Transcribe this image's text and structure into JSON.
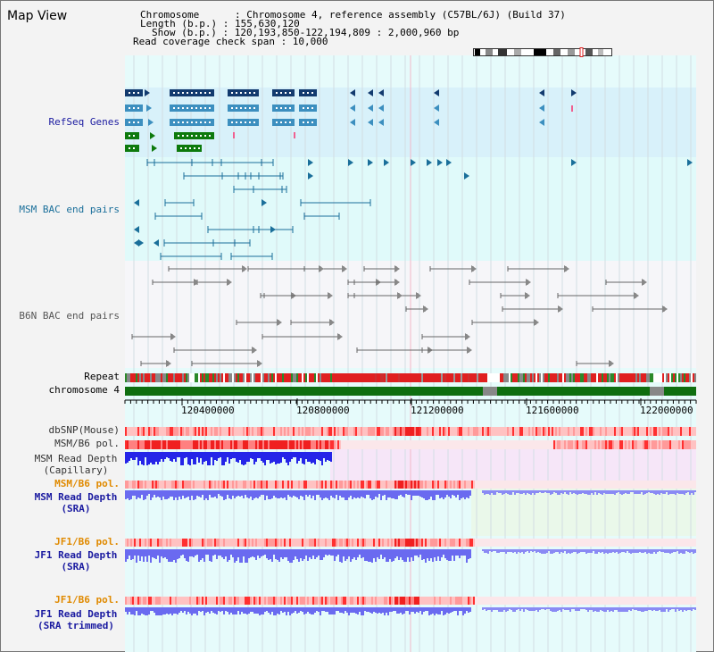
{
  "header": {
    "title": "Map View",
    "chromosome_line": "Chromosome      : Chromosome 4, reference assembly (C57BL/6J) (Build 37)",
    "length_line": "Length (b.p.) : 155,630,120",
    "show_line": "Show (b.p.) : 120,193,850-122,194,809 : 2,000,960 bp",
    "coverage_line": "Read coverage check span : 10,000"
  },
  "tracks": {
    "refseq": "RefSeq Genes",
    "msm_bac": "MSM BAC end pairs",
    "b6n_bac": "B6N BAC end pairs",
    "repeat": "Repeat",
    "chromosome": "chromosome 4",
    "dbsnp": "dbSNP(Mouse)",
    "msm_pol_1": "MSM/B6 pol.",
    "msm_depth_cap_1": "MSM Read Depth",
    "msm_depth_cap_2": "(Capillary)",
    "msm_pol_2": "MSM/B6 pol.",
    "msm_depth_sra_1": "MSM Read Depth",
    "msm_depth_sra_2": "(SRA)",
    "jf1_pol_1": "JF1/B6 pol.",
    "jf1_depth_sra_1": "JF1 Read Depth",
    "jf1_depth_sra_2": "(SRA)",
    "jf1_pol_2": "JF1/B6 pol.",
    "jf1_depth_trim_1": "JF1 Read Depth",
    "jf1_depth_trim_2": "(SRA trimmed)"
  },
  "axis": {
    "ticks": [
      "120400000",
      "120800000",
      "121200000",
      "121600000",
      "122000000"
    ]
  },
  "colors": {
    "refseq_dark": "#123a6e",
    "refseq_mid": "#3c8fbf",
    "refseq_green": "#0d7a0d",
    "msm_bac": "#1a6f9a",
    "b6n_bac": "#666666",
    "pol_red": "#e02020",
    "depth_blue": "#2525e8",
    "depth_lightblue": "#6a6af0",
    "label_navy": "#1a1aa0",
    "label_orange": "#e08a00",
    "label_teal": "#1a6f9a"
  }
}
